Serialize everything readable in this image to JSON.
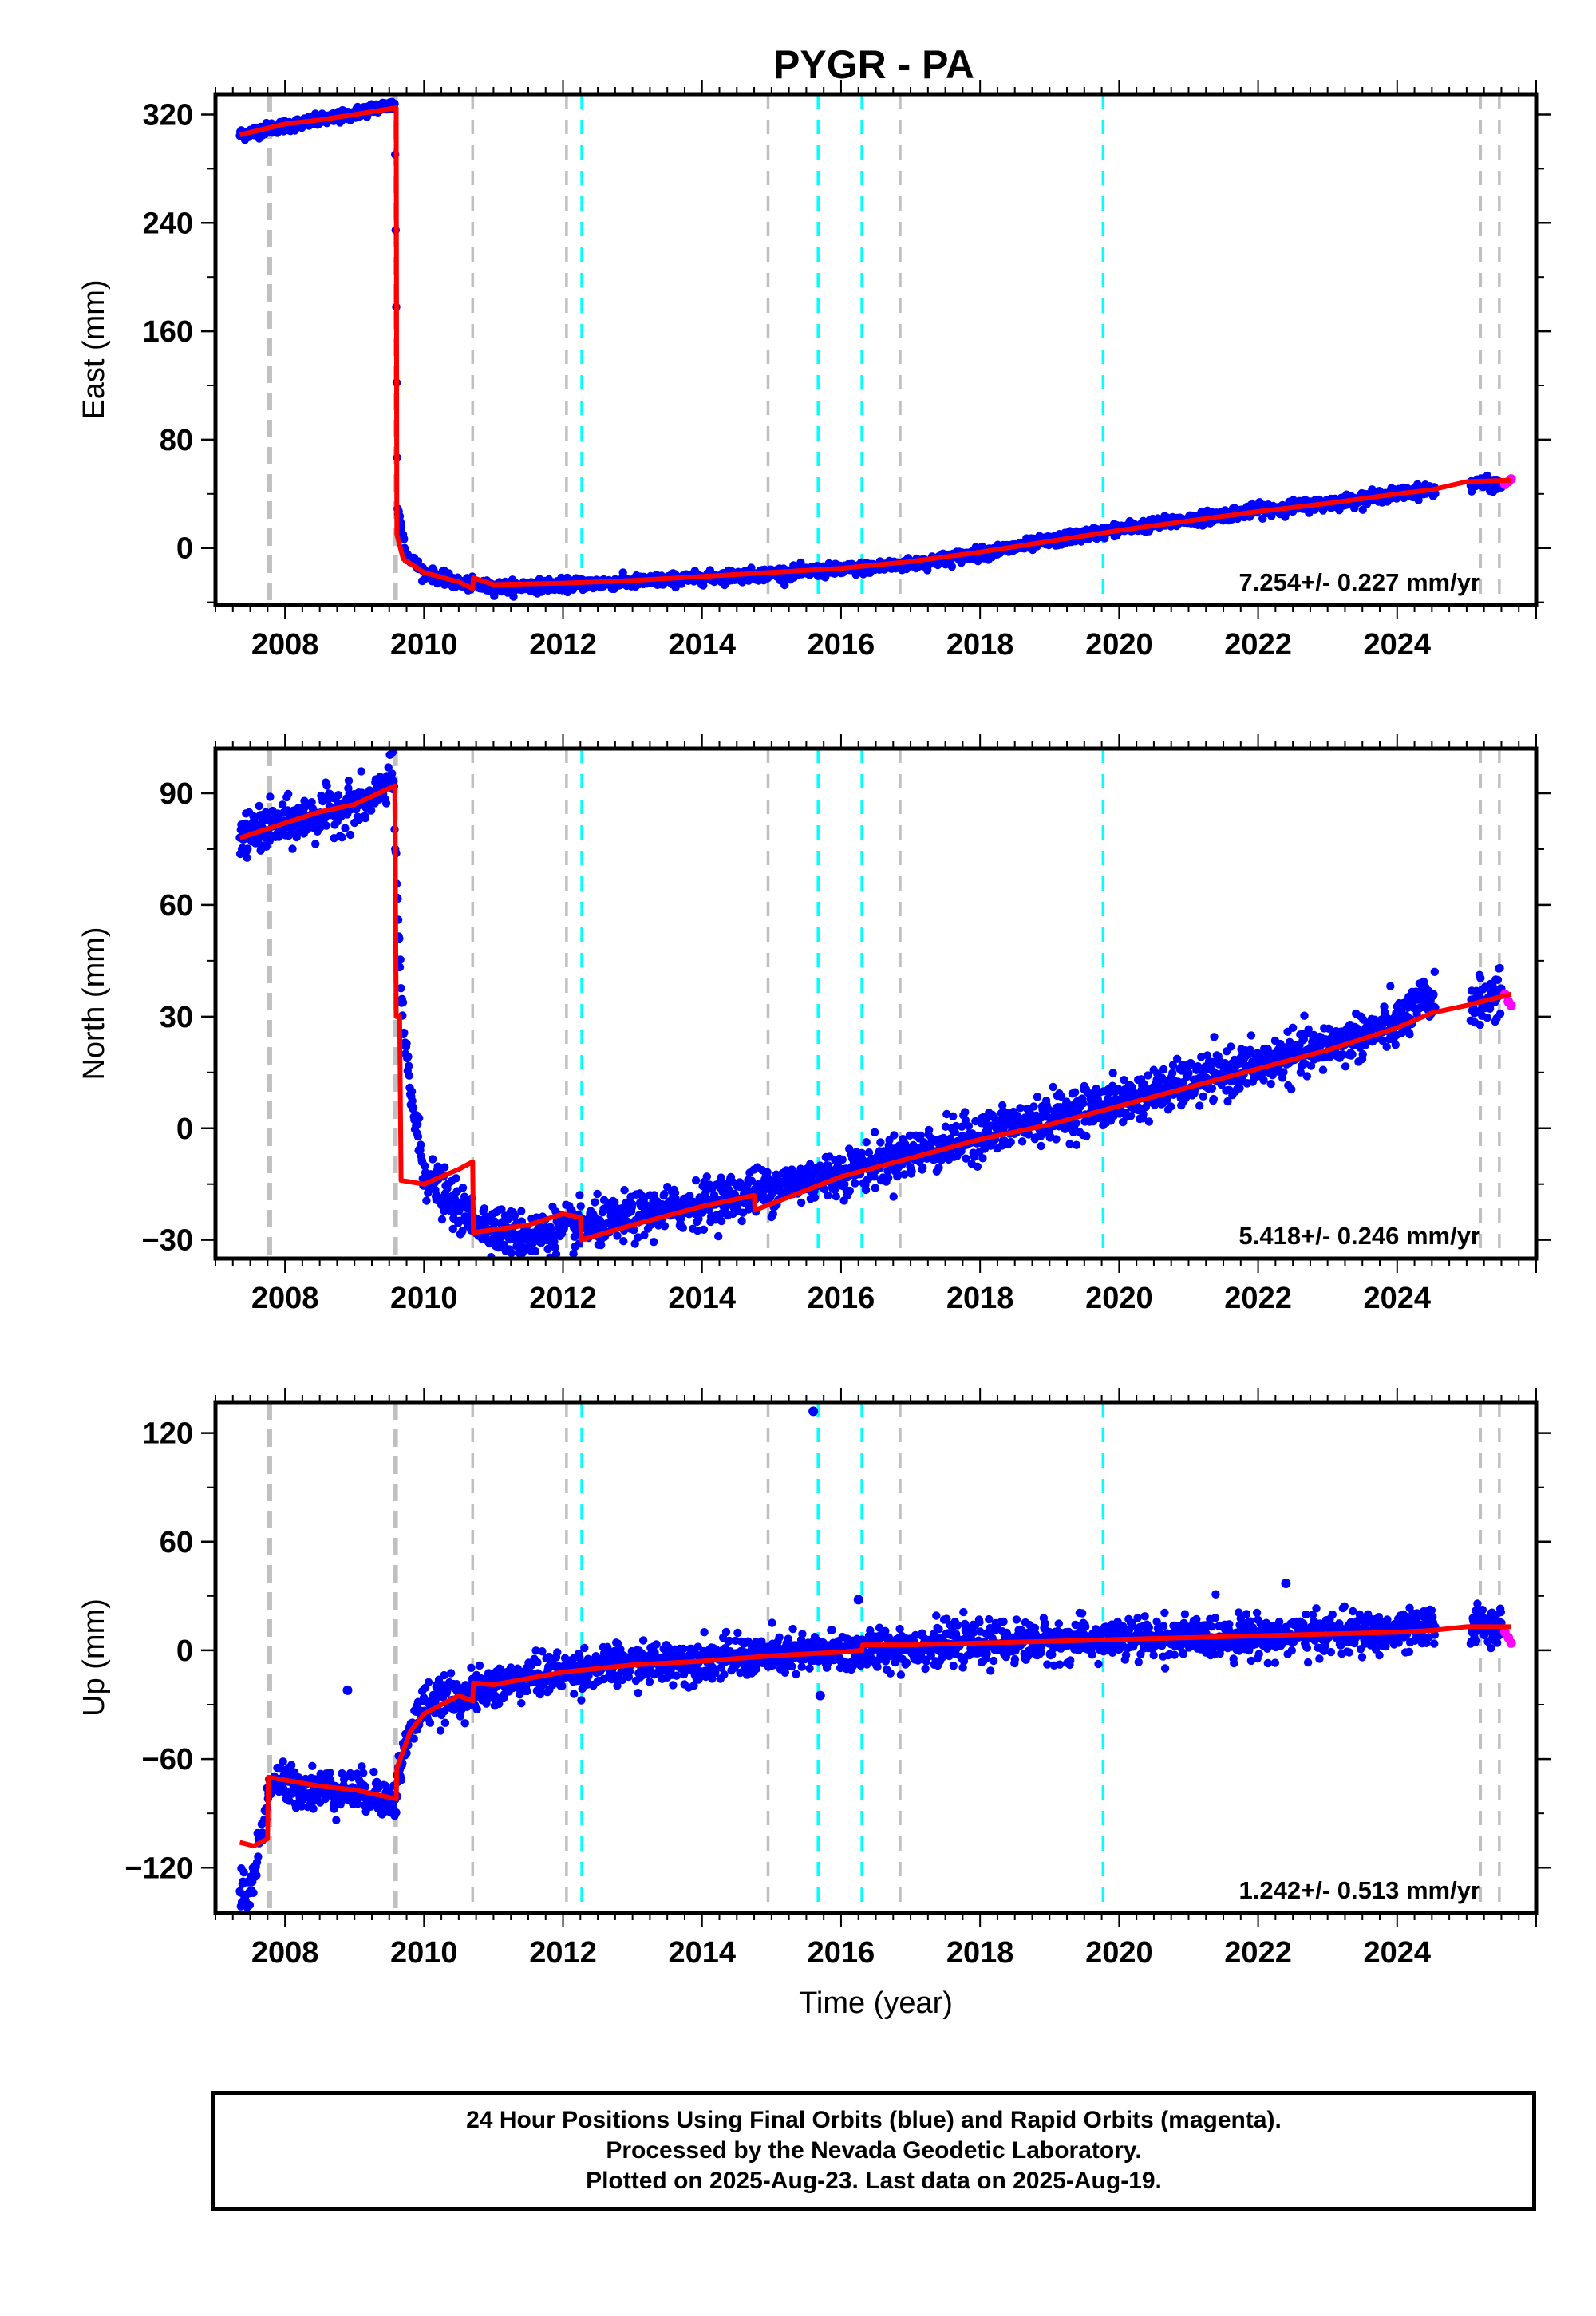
{
  "chart_data": [
    {
      "type": "scatter",
      "panel": "east",
      "title": "PYGR - PA",
      "ylabel": "East (mm)",
      "xlabel": "",
      "xlim": [
        2007.0,
        2026.0
      ],
      "ylim": [
        -42,
        335
      ],
      "yticks": [
        0,
        80,
        160,
        240,
        320
      ],
      "xticks": [
        2008,
        2010,
        2012,
        2014,
        2016,
        2018,
        2020,
        2022,
        2024
      ],
      "rate_label": "7.254+/- 0.227 mm/yr",
      "grid": false,
      "series": [
        {
          "name": "Final Orbits",
          "color": "#0000ff",
          "x": [
            2007.35,
            2007.8,
            2008.3,
            2008.8,
            2009.3,
            2009.58,
            2009.62,
            2009.75,
            2010.0,
            2010.5,
            2011.0,
            2011.5,
            2012.0,
            2013.0,
            2014.0,
            2015.0,
            2016.0,
            2017.0,
            2018.0,
            2019.0,
            2020.0,
            2021.0,
            2022.0,
            2023.0,
            2024.0,
            2024.5,
            2025.2,
            2025.5
          ],
          "y": [
            305,
            310,
            314,
            318,
            325,
            327,
            30,
            -5,
            -18,
            -26,
            -29,
            -28,
            -27,
            -25,
            -22,
            -19,
            -16,
            -12,
            -4,
            5,
            14,
            21,
            28,
            33,
            40,
            43,
            48,
            46
          ]
        },
        {
          "name": "Rapid Orbits",
          "color": "#ff00ff",
          "x": [
            2025.55,
            2025.6,
            2025.64
          ],
          "y": [
            47,
            49,
            51
          ]
        }
      ],
      "model": {
        "color": "#ff0000",
        "x": [
          2007.35,
          2008.0,
          2008.5,
          2009.0,
          2009.6,
          2009.61,
          2009.7,
          2010.0,
          2010.5,
          2010.7,
          2010.71,
          2011.0,
          2012.0,
          2013.0,
          2014.0,
          2015.0,
          2016.0,
          2017.0,
          2018.0,
          2019.0,
          2020.0,
          2021.0,
          2022.0,
          2023.0,
          2024.0,
          2024.5,
          2025.0,
          2025.64
        ],
        "y": [
          305,
          313,
          316,
          320,
          325,
          10,
          -8,
          -18,
          -25,
          -30,
          -22,
          -27,
          -26,
          -24,
          -21,
          -18,
          -15,
          -10,
          -3,
          5,
          13,
          20,
          27,
          33,
          40,
          43,
          49,
          50
        ]
      }
    },
    {
      "type": "scatter",
      "panel": "north",
      "ylabel": "North (mm)",
      "xlabel": "",
      "xlim": [
        2007.0,
        2026.0
      ],
      "ylim": [
        -35,
        102
      ],
      "yticks": [
        -30,
        0,
        30,
        60,
        90
      ],
      "xticks": [
        2008,
        2010,
        2012,
        2014,
        2016,
        2018,
        2020,
        2022,
        2024
      ],
      "rate_label": "5.418+/- 0.246 mm/yr",
      "grid": false,
      "series": [
        {
          "name": "Final Orbits",
          "color": "#0000ff",
          "x": [
            2007.35,
            2007.8,
            2008.3,
            2008.8,
            2009.3,
            2009.55,
            2009.62,
            2009.7,
            2009.85,
            2010.0,
            2010.5,
            2011.0,
            2011.5,
            2012.0,
            2012.5,
            2013.0,
            2014.0,
            2015.0,
            2016.0,
            2017.0,
            2018.0,
            2019.0,
            2020.0,
            2021.0,
            2022.0,
            2023.0,
            2024.0,
            2024.45,
            2025.2,
            2025.5
          ],
          "y": [
            78,
            81,
            83,
            86,
            88,
            97,
            60,
            25,
            5,
            -12,
            -22,
            -27,
            -29,
            -27,
            -26,
            -24,
            -20,
            -16,
            -12,
            -7,
            -2,
            3,
            7,
            12,
            17,
            22,
            28,
            35,
            34,
            36
          ]
        },
        {
          "name": "Rapid Orbits",
          "color": "#ff00ff",
          "x": [
            2025.55,
            2025.6,
            2025.64
          ],
          "y": [
            36,
            34,
            33
          ]
        }
      ],
      "model": {
        "color": "#ff0000",
        "x": [
          2007.35,
          2008.0,
          2008.5,
          2009.0,
          2009.58,
          2009.6,
          2009.65,
          2009.67,
          2010.0,
          2010.5,
          2010.7,
          2010.71,
          2011.5,
          2012.0,
          2012.25,
          2012.26,
          2013.0,
          2014.0,
          2014.75,
          2014.76,
          2016.0,
          2017.0,
          2018.0,
          2019.0,
          2020.0,
          2021.0,
          2022.0,
          2023.0,
          2024.0,
          2024.5,
          2025.0,
          2025.64
        ],
        "y": [
          78,
          82,
          85,
          87,
          92,
          30,
          30,
          -14,
          -15,
          -11,
          -9,
          -28,
          -26,
          -23,
          -24,
          -30,
          -26,
          -21,
          -18,
          -22,
          -13,
          -8,
          -3,
          1,
          6,
          11,
          16,
          21,
          27,
          31,
          33,
          36
        ]
      }
    },
    {
      "type": "scatter",
      "panel": "up",
      "ylabel": "Up (mm)",
      "xlabel": "Time (year)",
      "xlim": [
        2007.0,
        2026.0
      ],
      "ylim": [
        -145,
        137
      ],
      "yticks": [
        -120,
        -60,
        0,
        60,
        120
      ],
      "xticks": [
        2008,
        2010,
        2012,
        2014,
        2016,
        2018,
        2020,
        2022,
        2024
      ],
      "rate_label": "1.242+/- 0.513 mm/yr",
      "grid": false,
      "series": [
        {
          "name": "Final Orbits",
          "color": "#0000ff",
          "x": [
            2007.35,
            2007.5,
            2007.8,
            2008.3,
            2008.8,
            2009.3,
            2009.58,
            2009.65,
            2009.8,
            2010.0,
            2010.5,
            2011.0,
            2011.5,
            2012.0,
            2012.5,
            2013.0,
            2014.0,
            2015.0,
            2016.0,
            2017.0,
            2018.0,
            2019.0,
            2020.0,
            2021.0,
            2022.0,
            2023.0,
            2024.0,
            2025.2,
            2025.5
          ],
          "y": [
            -130,
            -135,
            -72,
            -76,
            -77,
            -79,
            -84,
            -65,
            -45,
            -30,
            -25,
            -20,
            -15,
            -12,
            -9,
            -8,
            -5,
            -3,
            -1,
            2,
            4,
            5,
            6,
            7,
            8,
            9,
            10,
            15,
            14
          ]
        },
        {
          "name": "Rapid Orbits",
          "color": "#ff00ff",
          "x": [
            2025.55,
            2025.6,
            2025.64
          ],
          "y": [
            10,
            7,
            4
          ]
        }
      ],
      "outliers": {
        "x": [
          2008.9,
          2015.6,
          2015.7,
          2016.25,
          2022.4
        ],
        "y": [
          -22,
          132,
          -25,
          28,
          37
        ]
      },
      "model": {
        "color": "#ff0000",
        "x": [
          2007.35,
          2007.55,
          2007.75,
          2007.76,
          2008.5,
          2009.0,
          2009.6,
          2009.61,
          2009.8,
          2010.0,
          2010.5,
          2010.7,
          2010.71,
          2011.0,
          2012.0,
          2013.0,
          2014.0,
          2015.0,
          2016.0,
          2016.3,
          2016.31,
          2017.0,
          2018.0,
          2019.0,
          2020.0,
          2021.0,
          2022.0,
          2023.0,
          2024.0,
          2024.5,
          2025.0,
          2025.64
        ],
        "y": [
          -106,
          -108,
          -104,
          -70,
          -75,
          -77,
          -82,
          -65,
          -45,
          -35,
          -25,
          -28,
          -18,
          -19,
          -12,
          -8,
          -6,
          -3,
          -1,
          0,
          3,
          3,
          4,
          5,
          6,
          7,
          8,
          9,
          10,
          11,
          13,
          13
        ]
      }
    }
  ],
  "vlines": {
    "gray_dashed": [
      2007.78,
      2009.59,
      2010.7,
      2012.05,
      2014.95,
      2016.85,
      2025.2,
      2025.47
    ],
    "gray_bold": [
      2007.78,
      2009.59
    ],
    "cyan_dashed": [
      2012.27,
      2015.67,
      2016.3,
      2019.77
    ],
    "gray_color": "#c0c0c0",
    "cyan_color": "#00ffff"
  },
  "footer": {
    "line1": "24 Hour Positions Using Final Orbits (blue) and Rapid Orbits (magenta).",
    "line2": "Processed by the Nevada Geodetic Laboratory.",
    "line3": "Plotted on 2025-Aug-23. Last data on 2025-Aug-19."
  }
}
